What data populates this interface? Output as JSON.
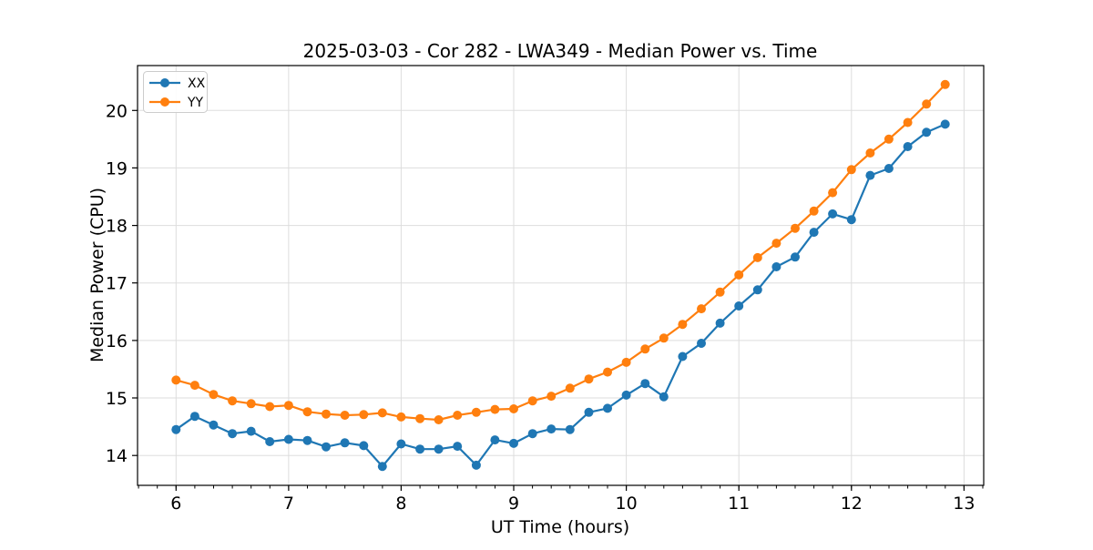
{
  "chart_data": {
    "type": "line",
    "title": "2025-03-03 - Cor 282 - LWA349 - Median Power vs. Time",
    "xlabel": "UT Time (hours)",
    "ylabel": "Median Power (CPU)",
    "xlim": [
      5.658,
      13.175
    ],
    "ylim": [
      13.48,
      20.78
    ],
    "xticks": [
      6,
      7,
      8,
      9,
      10,
      11,
      12,
      13
    ],
    "yticks": [
      14,
      15,
      16,
      17,
      18,
      19,
      20
    ],
    "x_minor_tick_step": 0.16667,
    "grid": true,
    "legend_position": "upper-left",
    "x": [
      6.0,
      6.167,
      6.333,
      6.5,
      6.667,
      6.833,
      7.0,
      7.167,
      7.333,
      7.5,
      7.667,
      7.833,
      8.0,
      8.167,
      8.333,
      8.5,
      8.667,
      8.833,
      9.0,
      9.167,
      9.333,
      9.5,
      9.667,
      9.833,
      10.0,
      10.167,
      10.333,
      10.5,
      10.667,
      10.833,
      11.0,
      11.167,
      11.333,
      11.5,
      11.667,
      11.833,
      12.0,
      12.167,
      12.333,
      12.5,
      12.667,
      12.833
    ],
    "series": [
      {
        "name": "XX",
        "color": "#1f77b4",
        "values": [
          14.45,
          14.68,
          14.53,
          14.38,
          14.42,
          14.24,
          14.28,
          14.26,
          14.15,
          14.22,
          14.17,
          13.81,
          14.2,
          14.11,
          14.11,
          14.16,
          13.83,
          14.27,
          14.21,
          14.38,
          14.46,
          14.45,
          14.75,
          14.82,
          15.05,
          15.25,
          15.02,
          15.72,
          15.95,
          16.3,
          16.6,
          16.88,
          17.28,
          17.45,
          17.88,
          18.2,
          18.1,
          18.87,
          18.99,
          19.37,
          19.62,
          19.76
        ]
      },
      {
        "name": "YY",
        "color": "#ff7f0e",
        "values": [
          15.31,
          15.22,
          15.06,
          14.95,
          14.9,
          14.85,
          14.87,
          14.76,
          14.72,
          14.7,
          14.71,
          14.74,
          14.67,
          14.64,
          14.62,
          14.7,
          14.75,
          14.8,
          14.81,
          14.95,
          15.03,
          15.17,
          15.33,
          15.45,
          15.62,
          15.85,
          16.04,
          16.28,
          16.55,
          16.84,
          17.14,
          17.44,
          17.69,
          17.95,
          18.25,
          18.57,
          18.97,
          19.26,
          19.5,
          19.79,
          20.11,
          20.45
        ]
      }
    ]
  },
  "colors": {
    "background": "#ffffff",
    "grid": "#dddddd",
    "axis": "#000000",
    "legend_border": "#cccccc"
  }
}
